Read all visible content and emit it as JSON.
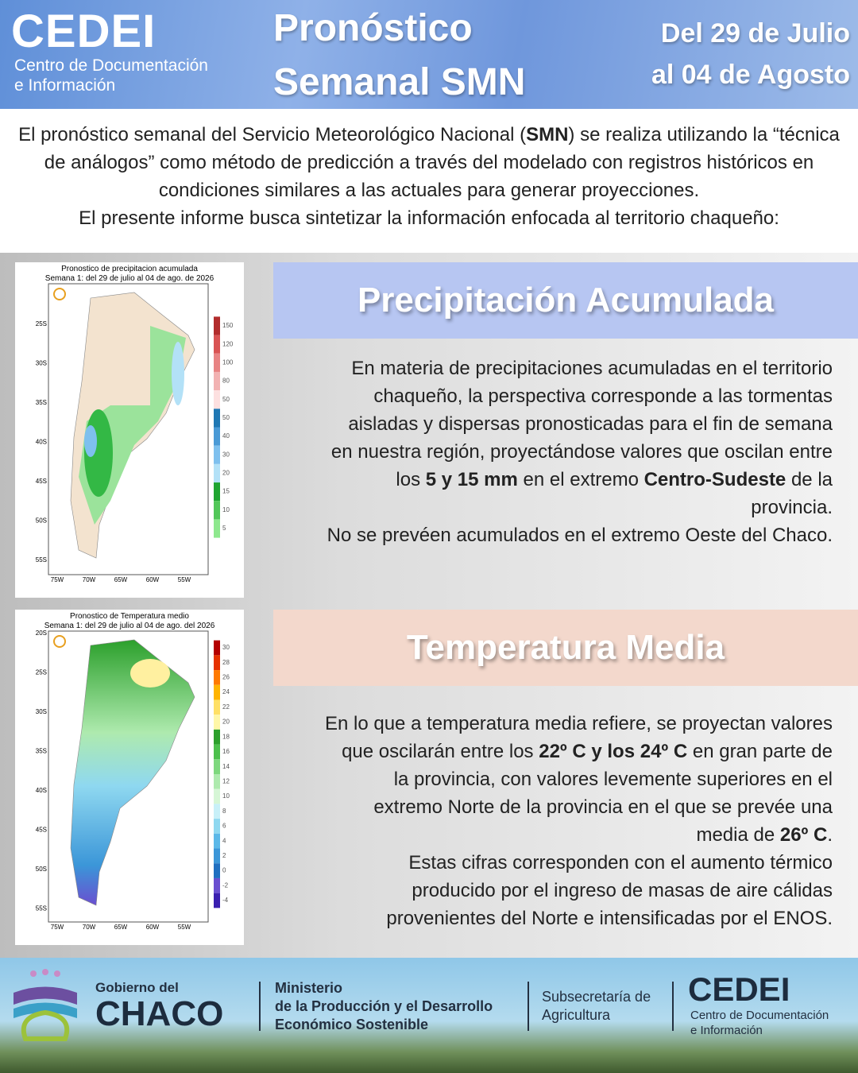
{
  "header": {
    "logo": "CEDEI",
    "logo_sub": [
      "Centro de Documentación",
      "e Información"
    ],
    "title": [
      "Pronóstico",
      "Semanal SMN"
    ],
    "dates": [
      "Del 29 de Julio",
      "al 04 de Agosto"
    ]
  },
  "intro": {
    "p1": [
      "El pronóstico semanal del Servicio Meteorológico Nacional (",
      "SMN",
      ") se realiza utilizando la “técnica de análogos”  como método de predicción a través del modelado con registros históricos en condiciones similares a las actuales para generar proyecciones."
    ],
    "p2": "El presente informe busca sintetizar la información enfocada al territorio chaqueño:"
  },
  "maps": [
    {
      "title": "Pronostico de precipitacion acumulada",
      "subtitle": "Semana 1: del 29 de julio al 04 de ago. de 2026",
      "lat_labels": [
        "25S",
        "30S",
        "35S",
        "40S",
        "45S",
        "50S",
        "55S"
      ],
      "lon_labels": [
        "75W",
        "70W",
        "65W",
        "60W",
        "55W"
      ],
      "colorbar": [
        "150",
        "120",
        "100",
        "80",
        "50",
        "50",
        "40",
        "30",
        "20",
        "15",
        "10",
        "5"
      ]
    },
    {
      "title": "Pronostico de Temperatura medio",
      "subtitle": "Semana 1: del 29 de julio al 04 de ago. del 2026",
      "lat_labels": [
        "20S",
        "25S",
        "30S",
        "35S",
        "40S",
        "45S",
        "50S",
        "55S"
      ],
      "lon_labels": [
        "75W",
        "70W",
        "65W",
        "60W",
        "55W"
      ],
      "colorbar": [
        "30",
        "28",
        "26",
        "24",
        "22",
        "20",
        "18",
        "16",
        "14",
        "12",
        "10",
        "8",
        "6",
        "4",
        "2",
        "0",
        "-2",
        "-4"
      ]
    }
  ],
  "sections": [
    {
      "heading": "Precipitación Acumulada",
      "p1": [
        "En materia de precipitaciones acumuladas en el territorio chaqueño, la perspectiva corresponde a las tormentas aisladas y dispersas pronosticadas para el fin de semana en nuestra región, proyectándose valores que oscilan entre los ",
        "5 y 15 mm",
        " en el extremo ",
        "Centro-Sudeste",
        " de la provincia."
      ],
      "p2": "No se prevéen acumulados en el extremo Oeste del Chaco."
    },
    {
      "heading": "Temperatura Media",
      "p1": [
        "En lo que a temperatura media refiere, se proyectan valores que oscilarán entre los ",
        "22º C y los 24º C",
        " en gran parte de la provincia, con valores levemente superiores en el extremo Norte de la provincia en el que se prevée una media de ",
        "26º C",
        "."
      ],
      "p2": "Estas cifras corresponden con el aumento térmico producido por el ingreso de masas de aire cálidas provenientes del Norte e intensificadas por el ENOS."
    }
  ],
  "footer": {
    "gov": [
      "Gobierno del",
      "CHACO"
    ],
    "ministry": [
      "Ministerio",
      "de la Producción y el Desarrollo",
      "Económico Sostenible"
    ],
    "subsecretaria": [
      "Subsecretaría de",
      "Agricultura"
    ],
    "cedei": "CEDEI",
    "cedei_sub": [
      "Centro de Documentación",
      "e Información"
    ]
  }
}
